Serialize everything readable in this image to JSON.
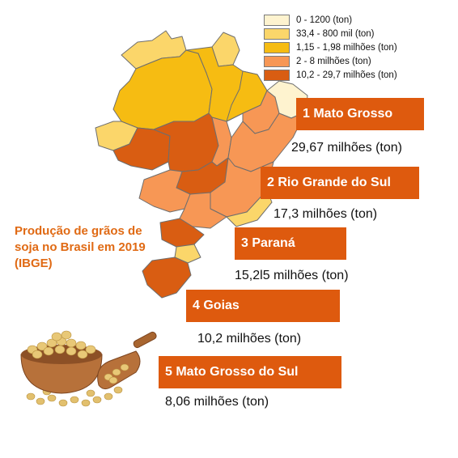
{
  "legend": [
    {
      "label": "0 -  1200 (ton)",
      "color": "#fef3cf"
    },
    {
      "label": "33,4 - 800 mil (ton)",
      "color": "#fbd66a"
    },
    {
      "label": "1,15 - 1,98 milhões (ton)",
      "color": "#f6bc12"
    },
    {
      "label": "2 - 8 milhões  (ton)",
      "color": "#f79755"
    },
    {
      "label": "10,2 - 29,7 milhões (ton)",
      "color": "#d95d12"
    }
  ],
  "caption": "Produção de grãos de soja no Brasil em 2019 (IBGE)",
  "ranking": [
    {
      "label": "1 Mato Grosso",
      "value": "29,67 milhões (ton)"
    },
    {
      "label": "2 Rio Grande do Sul",
      "value": "17,3 milhões (ton)"
    },
    {
      "label": "3 Paraná",
      "value": "15,2l5 milhões (ton)"
    },
    {
      "label": "4 Goias",
      "value": "10,2 milhões  (ton)"
    },
    {
      "label": "5 Mato Grosso do Sul",
      "value": "8,06 milhões (ton)"
    }
  ],
  "colors": {
    "box": "#de5a0e",
    "caption": "#e06a14",
    "map_outline": "#6e6e6e"
  }
}
